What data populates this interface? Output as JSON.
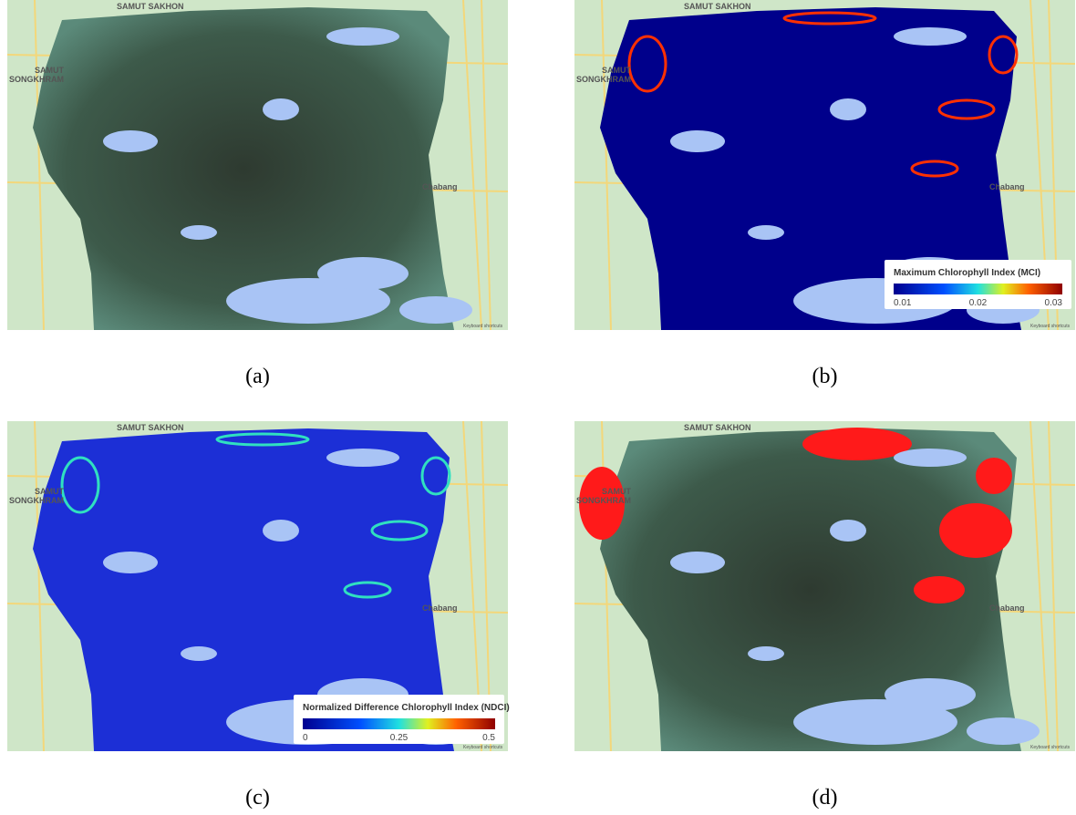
{
  "panels": [
    {
      "caption": "(a)",
      "map_labels": {
        "city_top": "SAMUT SAKHON",
        "city_left_1": "SAMUT",
        "city_left_2": "SONGKHRAM",
        "town": "Chabang",
        "footer": "Keyboard shortcuts"
      }
    },
    {
      "caption": "(b)",
      "map_labels": {
        "city_top": "SAMUT SAKHON",
        "city_left_1": "SAMUT",
        "city_left_2": "SONGKHRAM",
        "town": "Chabang",
        "footer": "Keyboard shortcuts"
      },
      "legend": {
        "title": "Maximum Chlorophyll Index (MCI)",
        "ticks": [
          "0.01",
          "0.02",
          "0.03"
        ]
      }
    },
    {
      "caption": "(c)",
      "map_labels": {
        "city_top": "SAMUT SAKHON",
        "city_left_1": "SAMUT",
        "city_left_2": "SONGKHRAM",
        "town": "Chabang",
        "footer": "Keyboard shortcuts"
      },
      "legend": {
        "title": "Normalized Difference Chlorophyll Index (NDCI)",
        "ticks": [
          "0",
          "0.25",
          "0.5"
        ]
      }
    },
    {
      "caption": "(d)",
      "map_labels": {
        "city_top": "SAMUT SAKHON",
        "city_left_1": "SAMUT",
        "city_left_2": "SONGKHRAM",
        "town": "Chabang",
        "footer": "Keyboard shortcuts"
      }
    }
  ]
}
